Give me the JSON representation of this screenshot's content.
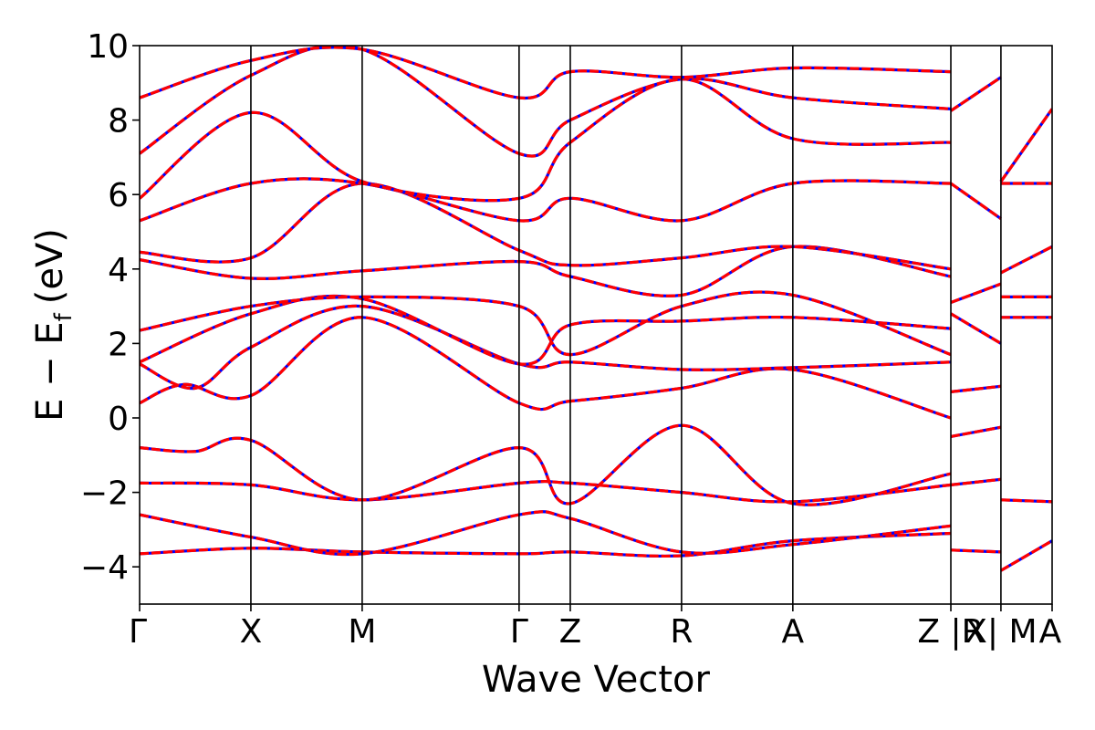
{
  "chart_data": {
    "type": "line",
    "xlabel": "Wave Vector",
    "ylabel_main": "E − E",
    "ylabel_sub": "f",
    "ylabel_unit": "(eV)",
    "ylim": [
      -5,
      10
    ],
    "yticks": [
      -4,
      -2,
      0,
      2,
      4,
      6,
      8,
      10
    ],
    "ytick_labels": [
      "−4",
      "−2",
      "0",
      "2",
      "4",
      "6",
      "8",
      "10"
    ],
    "kpath_labels": [
      "Γ",
      "X",
      "M",
      "Γ",
      "Z",
      "R",
      "A",
      "Z |R",
      "X| M",
      "A"
    ],
    "kpath_positions": [
      0,
      1,
      2,
      3.41,
      3.87,
      4.87,
      5.87,
      7.29,
      7.74,
      8.2
    ],
    "segment_breaks": [
      7.29,
      7.74
    ],
    "grid": false,
    "series_colors": {
      "dft": "#0000ff",
      "model": "#ff0000"
    },
    "bands": [
      {
        "k": [
          0,
          1,
          2,
          3.41,
          3.87,
          4.87,
          5.87,
          7.29
        ],
        "e": [
          -3.65,
          -3.5,
          -3.6,
          -3.65,
          -3.6,
          -3.7,
          -3.3,
          -3.1
        ]
      },
      {
        "k": [
          0,
          1,
          2,
          3.41,
          3.87,
          4.87,
          5.87,
          7.29
        ],
        "e": [
          -2.6,
          -3.2,
          -3.65,
          -2.6,
          -2.7,
          -3.6,
          -3.4,
          -2.9
        ]
      },
      {
        "k": [
          0,
          1,
          2,
          3.41,
          3.87,
          4.87,
          5.87,
          7.29
        ],
        "e": [
          -1.75,
          -1.8,
          -2.2,
          -1.75,
          -1.75,
          -2.0,
          -2.25,
          -1.8
        ]
      },
      {
        "k": [
          0,
          0.5,
          1,
          2,
          3.41,
          3.87,
          4.87,
          5.87,
          7.29
        ],
        "e": [
          -0.8,
          -0.9,
          -0.6,
          -2.2,
          -0.8,
          -2.3,
          -0.2,
          -2.3,
          -1.5
        ]
      },
      {
        "k": [
          0,
          0.4,
          1,
          2,
          3.41,
          3.87,
          4.87,
          5.87,
          7.29
        ],
        "e": [
          0.4,
          0.9,
          0.6,
          2.7,
          0.4,
          0.45,
          0.8,
          1.3,
          0.0
        ]
      },
      {
        "k": [
          0,
          0.5,
          1,
          2,
          3.41,
          3.87,
          4.87,
          5.87,
          7.29
        ],
        "e": [
          1.45,
          0.8,
          1.9,
          3.0,
          1.45,
          1.5,
          1.3,
          1.35,
          1.5
        ]
      },
      {
        "k": [
          0,
          1,
          2,
          3.41,
          3.87,
          4.87,
          5.87,
          7.29
        ],
        "e": [
          1.5,
          2.8,
          3.2,
          1.45,
          2.5,
          2.6,
          2.7,
          2.4
        ]
      },
      {
        "k": [
          0,
          1,
          2,
          3.41,
          3.87,
          4.87,
          5.87,
          7.29
        ],
        "e": [
          2.35,
          3.0,
          3.25,
          3.0,
          1.7,
          3.0,
          3.3,
          1.7
        ]
      },
      {
        "k": [
          0,
          1,
          2,
          3.41,
          3.87,
          4.87,
          5.87,
          7.29
        ],
        "e": [
          4.25,
          3.75,
          3.95,
          4.2,
          3.8,
          3.3,
          4.6,
          3.8
        ]
      },
      {
        "k": [
          0,
          1,
          2,
          3.41,
          3.87,
          4.87,
          5.87,
          7.29
        ],
        "e": [
          4.45,
          4.3,
          6.3,
          4.5,
          4.1,
          4.3,
          4.6,
          4.0
        ]
      },
      {
        "k": [
          0,
          1,
          2,
          3.41,
          3.87,
          4.87,
          5.87,
          7.29
        ],
        "e": [
          5.3,
          6.3,
          6.3,
          5.3,
          5.9,
          5.3,
          6.3,
          6.3
        ]
      },
      {
        "k": [
          0,
          1,
          2,
          3.41,
          3.87,
          4.87,
          5.87,
          7.29
        ],
        "e": [
          5.9,
          8.2,
          6.35,
          5.9,
          7.4,
          9.1,
          7.5,
          7.4
        ]
      },
      {
        "k": [
          0,
          1,
          2,
          3.41,
          3.87,
          4.87,
          5.87,
          7.29
        ],
        "e": [
          7.1,
          9.2,
          9.9,
          7.1,
          8.0,
          9.1,
          8.6,
          8.3
        ]
      },
      {
        "k": [
          0,
          1,
          2,
          3.41,
          3.87,
          4.87,
          5.87,
          7.29
        ],
        "e": [
          8.6,
          9.6,
          9.9,
          8.6,
          9.3,
          9.15,
          9.4,
          9.3
        ]
      },
      {
        "k": [
          7.29,
          7.74
        ],
        "e": [
          -3.55,
          -3.6
        ]
      },
      {
        "k": [
          7.29,
          7.74
        ],
        "e": [
          -1.8,
          -1.65
        ]
      },
      {
        "k": [
          7.29,
          7.74
        ],
        "e": [
          -0.5,
          -0.25
        ]
      },
      {
        "k": [
          7.29,
          7.74
        ],
        "e": [
          0.7,
          0.85
        ]
      },
      {
        "k": [
          7.29,
          7.74
        ],
        "e": [
          2.8,
          2.0
        ]
      },
      {
        "k": [
          7.29,
          7.74
        ],
        "e": [
          3.1,
          3.6
        ]
      },
      {
        "k": [
          7.29,
          7.74
        ],
        "e": [
          6.3,
          5.35
        ]
      },
      {
        "k": [
          7.29,
          7.74
        ],
        "e": [
          8.25,
          9.15
        ]
      },
      {
        "k": [
          7.74,
          8.2
        ],
        "e": [
          -4.1,
          -3.3
        ]
      },
      {
        "k": [
          7.74,
          8.2
        ],
        "e": [
          -2.2,
          -2.25
        ]
      },
      {
        "k": [
          7.74,
          8.2
        ],
        "e": [
          2.7,
          2.7
        ]
      },
      {
        "k": [
          7.74,
          8.2
        ],
        "e": [
          3.25,
          3.25
        ]
      },
      {
        "k": [
          7.74,
          8.2
        ],
        "e": [
          3.9,
          4.6
        ]
      },
      {
        "k": [
          7.74,
          8.2
        ],
        "e": [
          6.3,
          6.3
        ]
      },
      {
        "k": [
          7.74,
          8.2
        ],
        "e": [
          6.35,
          8.3
        ]
      }
    ]
  }
}
